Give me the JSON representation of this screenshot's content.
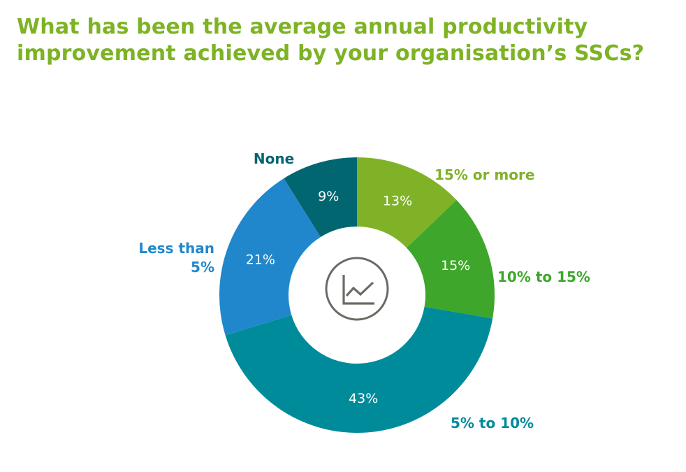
{
  "title": {
    "line1": "What has been the average annual productivity",
    "line2": "improvement achieved by your organisation’s SSCs?",
    "color": "#7db324"
  },
  "center_icon": "line-chart-icon",
  "chart_data": {
    "type": "pie",
    "variant": "donut",
    "title": "What has been the average annual productivity improvement achieved by your organisation’s SSCs?",
    "start": "top",
    "direction": "clockwise",
    "unit": "%",
    "slices": [
      {
        "name": "15% or more",
        "label_lines": [
          "15% or more"
        ],
        "value": 13,
        "value_label": "13%",
        "color": "#80b227",
        "label_color": "#80b227"
      },
      {
        "name": "10% to 15%",
        "label_lines": [
          "10% to 15%"
        ],
        "value": 15,
        "value_label": "15%",
        "color": "#3ea62a",
        "label_color": "#3ea62a"
      },
      {
        "name": "5% to 10%",
        "label_lines": [
          "5% to 10%"
        ],
        "value": 43,
        "value_label": "43%",
        "color": "#008b9b",
        "label_color": "#008b9b"
      },
      {
        "name": "Less than 5%",
        "label_lines": [
          "Less than",
          "5%"
        ],
        "value": 21,
        "value_label": "21%",
        "color": "#2187cc",
        "label_color": "#2187cc"
      },
      {
        "name": "None",
        "label_lines": [
          "None"
        ],
        "value": 9,
        "value_label": "9%",
        "color": "#026671",
        "label_color": "#026671"
      }
    ]
  }
}
